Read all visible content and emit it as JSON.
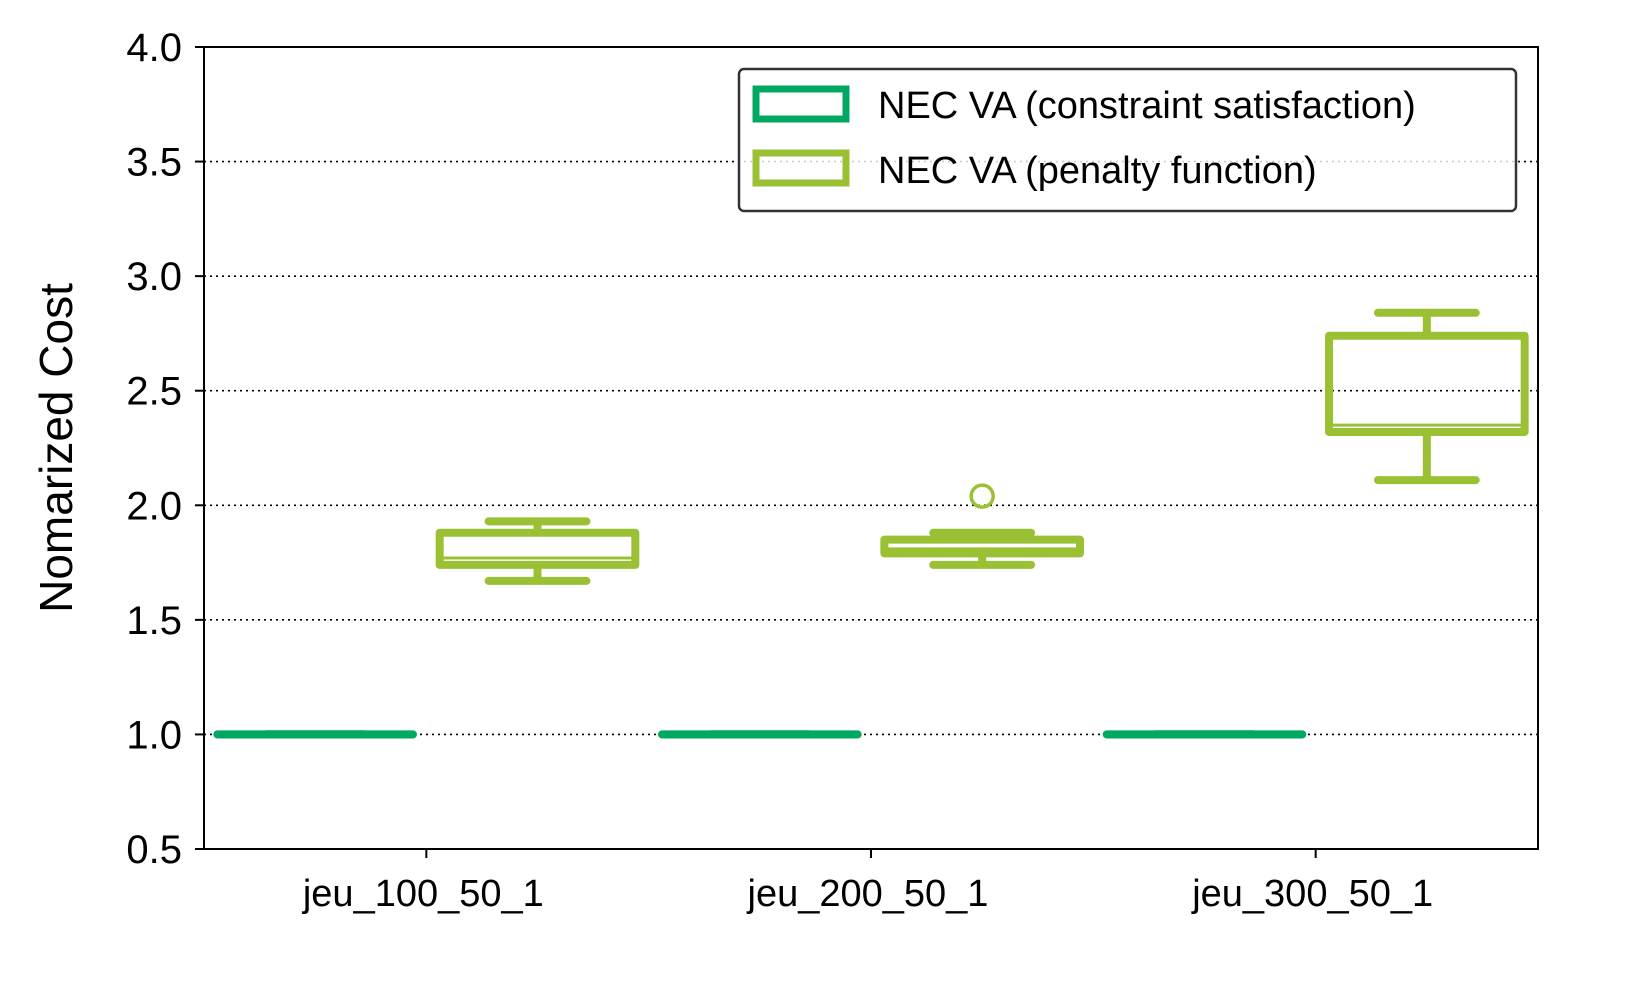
{
  "chart_data": {
    "type": "box",
    "ylabel": "Nomarized Cost",
    "ylim": [
      0.5,
      4.0
    ],
    "yticks": [
      "0.5",
      "1.0",
      "1.5",
      "2.0",
      "2.5",
      "3.0",
      "3.5",
      "4.0"
    ],
    "categories": [
      "jeu_100_50_1",
      "jeu_200_50_1",
      "jeu_300_50_1"
    ],
    "grid": "y dotted",
    "legend_position": "top-right",
    "series": [
      {
        "name": "NEC VA (constraint satisfaction)",
        "color": "#00a862",
        "boxes": [
          {
            "whislo": 1.0,
            "q1": 1.0,
            "med": 1.0,
            "q3": 1.0,
            "whishi": 1.0,
            "fliers": []
          },
          {
            "whislo": 1.0,
            "q1": 1.0,
            "med": 1.0,
            "q3": 1.0,
            "whishi": 1.0,
            "fliers": []
          },
          {
            "whislo": 1.0,
            "q1": 1.0,
            "med": 1.0,
            "q3": 1.0,
            "whishi": 1.0,
            "fliers": []
          }
        ]
      },
      {
        "name": "NEC VA (penalty function)",
        "color": "#9ac033",
        "boxes": [
          {
            "whislo": 1.67,
            "q1": 1.74,
            "med": 1.77,
            "q3": 1.88,
            "whishi": 1.93,
            "fliers": []
          },
          {
            "whislo": 1.74,
            "q1": 1.79,
            "med": 1.81,
            "q3": 1.85,
            "whishi": 1.88,
            "fliers": [
              2.04
            ]
          },
          {
            "whislo": 2.11,
            "q1": 2.32,
            "med": 2.35,
            "q3": 2.74,
            "whishi": 2.84,
            "fliers": []
          }
        ]
      }
    ]
  }
}
